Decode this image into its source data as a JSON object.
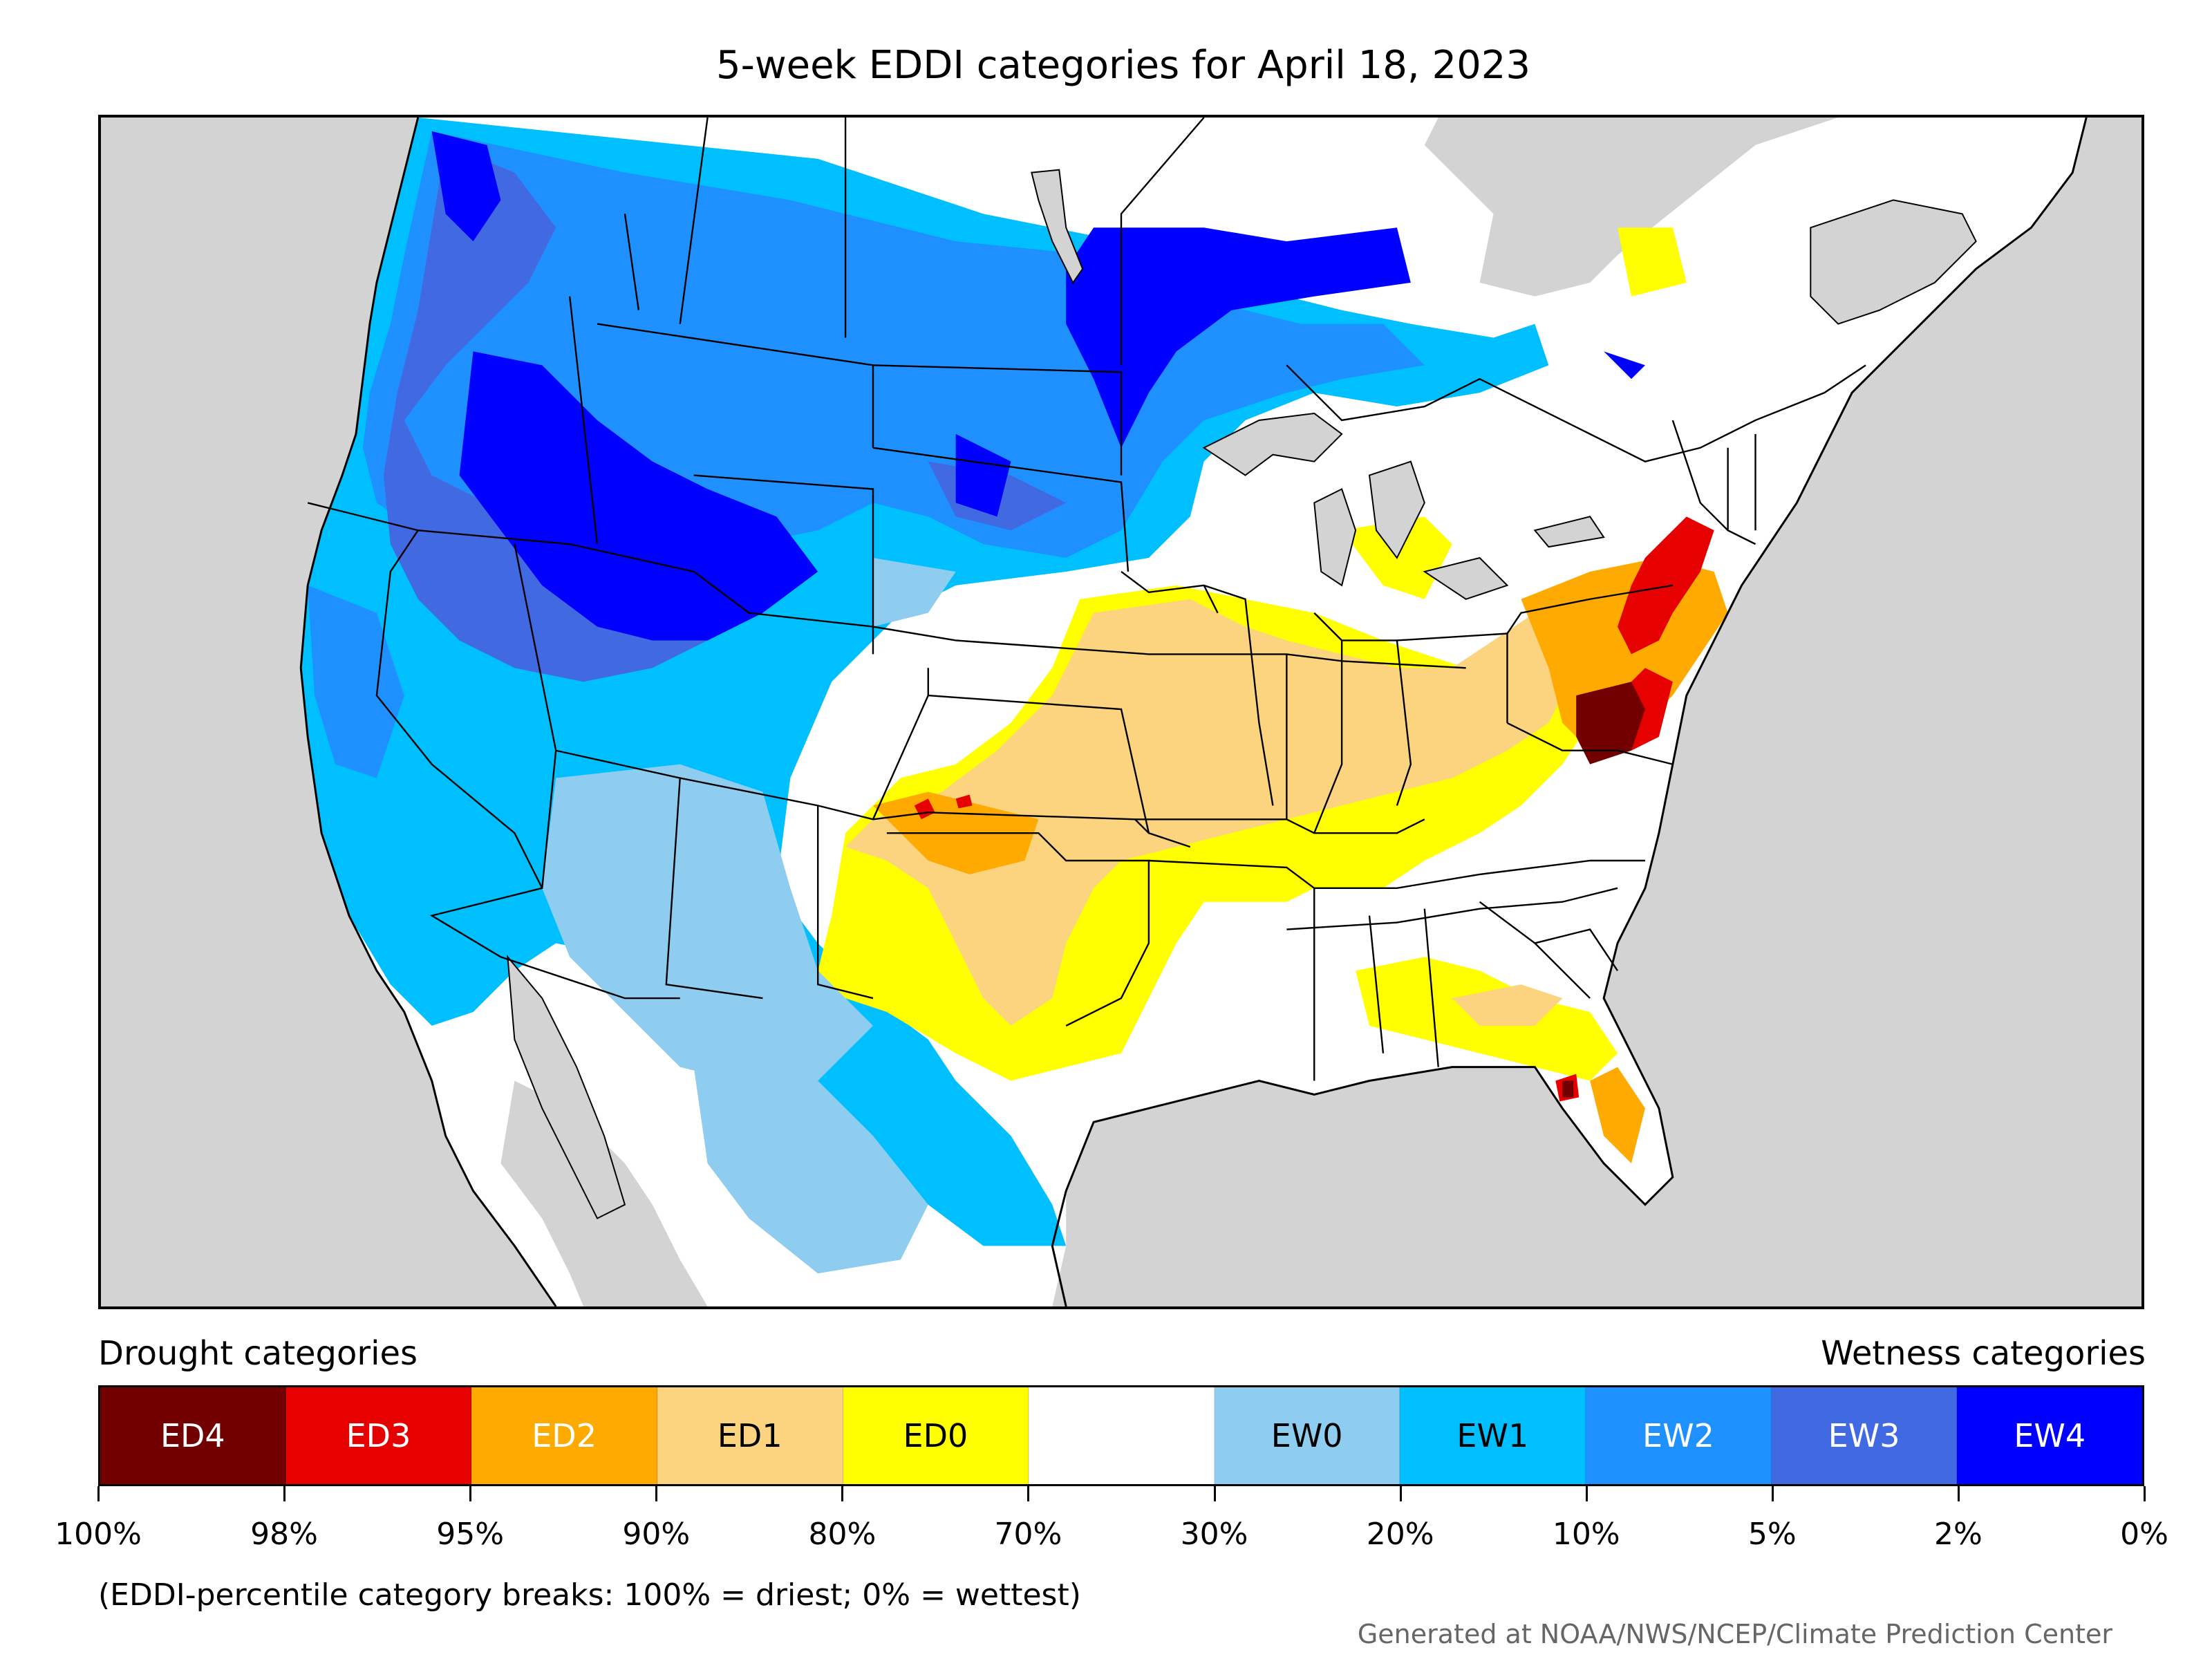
{
  "title": "5-week EDDI categories for April 18, 2023",
  "map": {
    "colors": {
      "land_none": "#ffffff",
      "water_outside": "#d3d3d3",
      "ED4": "#730000",
      "ED3": "#e60000",
      "ED2": "#ffaa00",
      "ED1": "#fcd37f",
      "ED0": "#ffff00",
      "EW0": "#8ecdf0",
      "EW1": "#00bfff",
      "EW2": "#1e90ff",
      "EW3": "#4169e1",
      "EW4": "#0000ff"
    }
  },
  "legend": {
    "drought_heading": "Drought categories",
    "wetness_heading": "Wetness categories",
    "categories": [
      {
        "label": "ED4",
        "color": "#730000",
        "text_color": "#ffffff"
      },
      {
        "label": "ED3",
        "color": "#e60000",
        "text_color": "#ffffff"
      },
      {
        "label": "ED2",
        "color": "#ffaa00",
        "text_color": "#ffffff"
      },
      {
        "label": "ED1",
        "color": "#fcd37f",
        "text_color": "#000000"
      },
      {
        "label": "ED0",
        "color": "#ffff00",
        "text_color": "#000000"
      },
      {
        "label": "",
        "color": "#ffffff",
        "text_color": "#000000"
      },
      {
        "label": "EW0",
        "color": "#8ecdf0",
        "text_color": "#000000"
      },
      {
        "label": "EW1",
        "color": "#00bfff",
        "text_color": "#000000"
      },
      {
        "label": "EW2",
        "color": "#1e90ff",
        "text_color": "#ffffff"
      },
      {
        "label": "EW3",
        "color": "#4169e1",
        "text_color": "#ffffff"
      },
      {
        "label": "EW4",
        "color": "#0000ff",
        "text_color": "#ffffff"
      }
    ],
    "ticks": [
      "100%",
      "98%",
      "95%",
      "90%",
      "80%",
      "70%",
      "30%",
      "20%",
      "10%",
      "5%",
      "2%",
      "0%"
    ]
  },
  "note": "(EDDI-percentile category breaks: 100% = driest; 0% = wettest)",
  "credit": "Generated at NOAA/NWS/NCEP/Climate Prediction Center"
}
